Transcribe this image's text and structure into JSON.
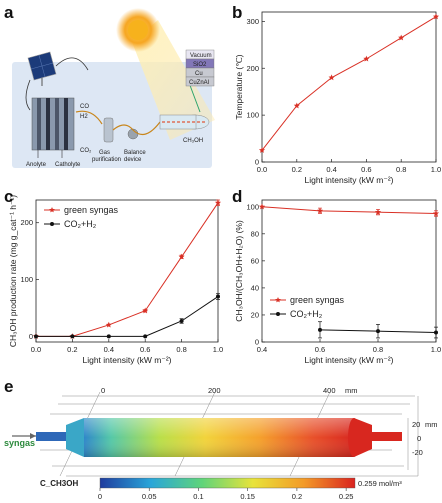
{
  "panels": {
    "a": "a",
    "b": "b",
    "c": "c",
    "d": "d",
    "e": "e"
  },
  "schematic": {
    "labels": [
      "Vacuum",
      "SiO2",
      "Cu",
      "CuZnAl"
    ],
    "co": "CO",
    "h2": "H2",
    "co2": "CO₂",
    "gas": [
      "Gas",
      "purification"
    ],
    "balance": [
      "Balance",
      "device"
    ],
    "anolyte": "Anolyte",
    "catholyte": "Catholyte",
    "product": "CH₃OH"
  },
  "chart_data": [
    {
      "panel": "b",
      "type": "line",
      "xlabel": "Light intensity (kW m⁻²)",
      "ylabel": "Temperature (℃)",
      "xlim": [
        0,
        1
      ],
      "ylim": [
        0,
        320
      ],
      "xticks": [
        "0.0",
        "0.2",
        "0.4",
        "0.6",
        "0.8",
        "1.0"
      ],
      "yticks": [
        "0",
        "100",
        "200",
        "300"
      ],
      "color": "#d93025",
      "x": [
        0.0,
        0.2,
        0.4,
        0.6,
        0.8,
        1.0
      ],
      "y": [
        25,
        120,
        180,
        220,
        265,
        310
      ]
    },
    {
      "panel": "c",
      "type": "line",
      "xlabel": "Light intensity (kW m⁻²)",
      "ylabel": "CH₃OH production rate (mg g_cat⁻¹ h⁻¹)",
      "xlim": [
        0,
        1
      ],
      "ylim": [
        -10,
        240
      ],
      "xticks": [
        "0.0",
        "0.2",
        "0.4",
        "0.6",
        "0.8",
        "1.0"
      ],
      "yticks": [
        "0",
        "100",
        "200"
      ],
      "legend_position": "top-left",
      "series": [
        {
          "name": "green syngas",
          "color": "#d93025",
          "marker": "star",
          "x": [
            0.0,
            0.2,
            0.4,
            0.6,
            0.8,
            1.0
          ],
          "y": [
            0,
            0,
            20,
            45,
            140,
            235
          ],
          "err": [
            0,
            0,
            0,
            2,
            3,
            5
          ]
        },
        {
          "name": "CO₂+H₂",
          "color": "#111111",
          "marker": "circle",
          "x": [
            0.0,
            0.2,
            0.4,
            0.6,
            0.8,
            1.0
          ],
          "y": [
            0,
            0,
            0,
            0,
            27,
            70
          ],
          "err": [
            0,
            0,
            0,
            0,
            4,
            5
          ]
        }
      ]
    },
    {
      "panel": "d",
      "type": "line",
      "xlabel": "Light intensity (kW m⁻²)",
      "ylabel": "CH₃OH/(CH₃OH+H₂O) (%)",
      "xlim": [
        0.4,
        1.0
      ],
      "ylim": [
        0,
        105
      ],
      "xticks": [
        "0.4",
        "0.6",
        "0.8",
        "1.0"
      ],
      "yticks": [
        "0",
        "20",
        "40",
        "60",
        "80",
        "100"
      ],
      "legend_position": "bottom-left",
      "series": [
        {
          "name": "green syngas",
          "color": "#d93025",
          "marker": "star",
          "x": [
            0.4,
            0.6,
            0.8,
            1.0
          ],
          "y": [
            100,
            97,
            96,
            95
          ],
          "err": [
            0,
            2,
            2,
            2
          ]
        },
        {
          "name": "CO₂+H₂",
          "color": "#111111",
          "marker": "circle",
          "x": [
            0.6,
            0.8,
            1.0
          ],
          "y": [
            9,
            8,
            7
          ],
          "err": [
            6,
            5,
            4
          ]
        }
      ]
    }
  ],
  "contour": {
    "axis_ticks": [
      "0",
      "200",
      "400"
    ],
    "axis_unit": "mm",
    "r_ticks": [
      "20",
      "0",
      "-20"
    ],
    "r_unit": "mm",
    "inlet": "syngas",
    "cbar_label": "C_CH3OH",
    "cbar_ticks": [
      "0",
      "0.05",
      "0.1",
      "0.15",
      "0.2",
      "0.25"
    ],
    "cbar_max": "0.259 mol/m³"
  }
}
